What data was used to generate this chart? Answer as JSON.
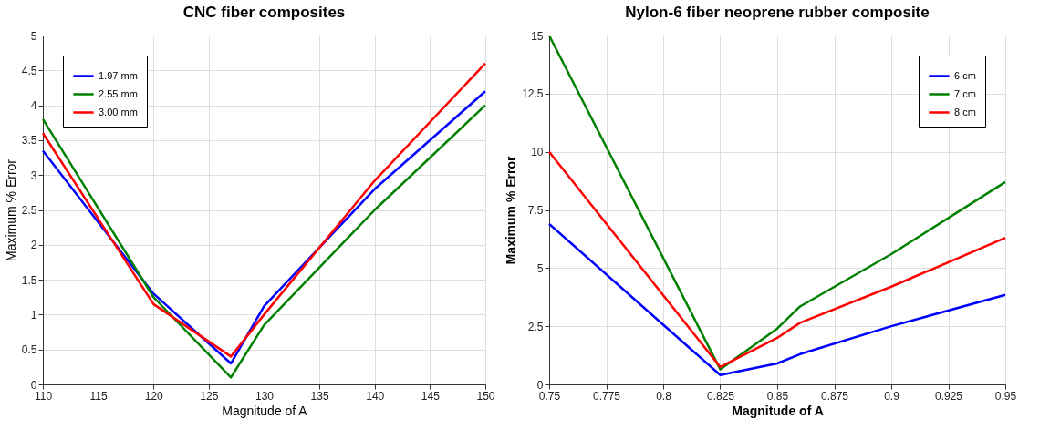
{
  "chart_data": [
    {
      "type": "line",
      "title": "CNC fiber composites",
      "xlabel": "Magnitude of A",
      "ylabel": "Maximum % Error",
      "x": [
        110,
        120,
        127,
        130,
        140,
        150
      ],
      "series": [
        {
          "name": "1.97 mm",
          "color": "#0000ff",
          "values": [
            3.35,
            1.3,
            0.3,
            1.12,
            2.8,
            4.2
          ]
        },
        {
          "name": "2.55 mm",
          "color": "#008000",
          "values": [
            3.8,
            1.25,
            0.1,
            0.85,
            2.5,
            4.0
          ]
        },
        {
          "name": "3.00 mm",
          "color": "#ff0000",
          "values": [
            3.6,
            1.15,
            0.4,
            1.0,
            2.92,
            4.6
          ]
        }
      ],
      "xlim": [
        110,
        150
      ],
      "xticks": [
        110,
        115,
        120,
        125,
        130,
        135,
        140,
        145,
        150
      ],
      "ylim": [
        0,
        5
      ],
      "yticks": [
        0,
        0.5,
        1,
        1.5,
        2,
        2.5,
        3,
        3.5,
        4,
        4.5,
        5
      ],
      "grid": true,
      "legend": "top left"
    },
    {
      "type": "line",
      "title": "Nylon-6 fiber neoprene rubber composite",
      "xlabel": "Magnitude of A",
      "ylabel": "Maximum % Error",
      "x": [
        0.75,
        0.825,
        0.85,
        0.86,
        0.9,
        0.95
      ],
      "series": [
        {
          "name": "6 cm",
          "color": "#0000ff",
          "values": [
            6.9,
            0.4,
            0.9,
            1.3,
            2.5,
            3.85
          ]
        },
        {
          "name": "7 cm",
          "color": "#008000",
          "values": [
            15,
            0.65,
            2.4,
            3.35,
            5.6,
            8.7
          ]
        },
        {
          "name": "8 cm",
          "color": "#ff0000",
          "values": [
            10,
            0.75,
            2.0,
            2.65,
            4.2,
            6.3
          ]
        }
      ],
      "xlim": [
        0.75,
        0.95
      ],
      "xticks": [
        0.75,
        0.775,
        0.8,
        0.825,
        0.85,
        0.875,
        0.9,
        0.925,
        0.95
      ],
      "ylim": [
        0,
        15
      ],
      "yticks": [
        0,
        2.5,
        5,
        7.5,
        10,
        12.5,
        15
      ],
      "grid": true,
      "legend": "top right"
    }
  ]
}
